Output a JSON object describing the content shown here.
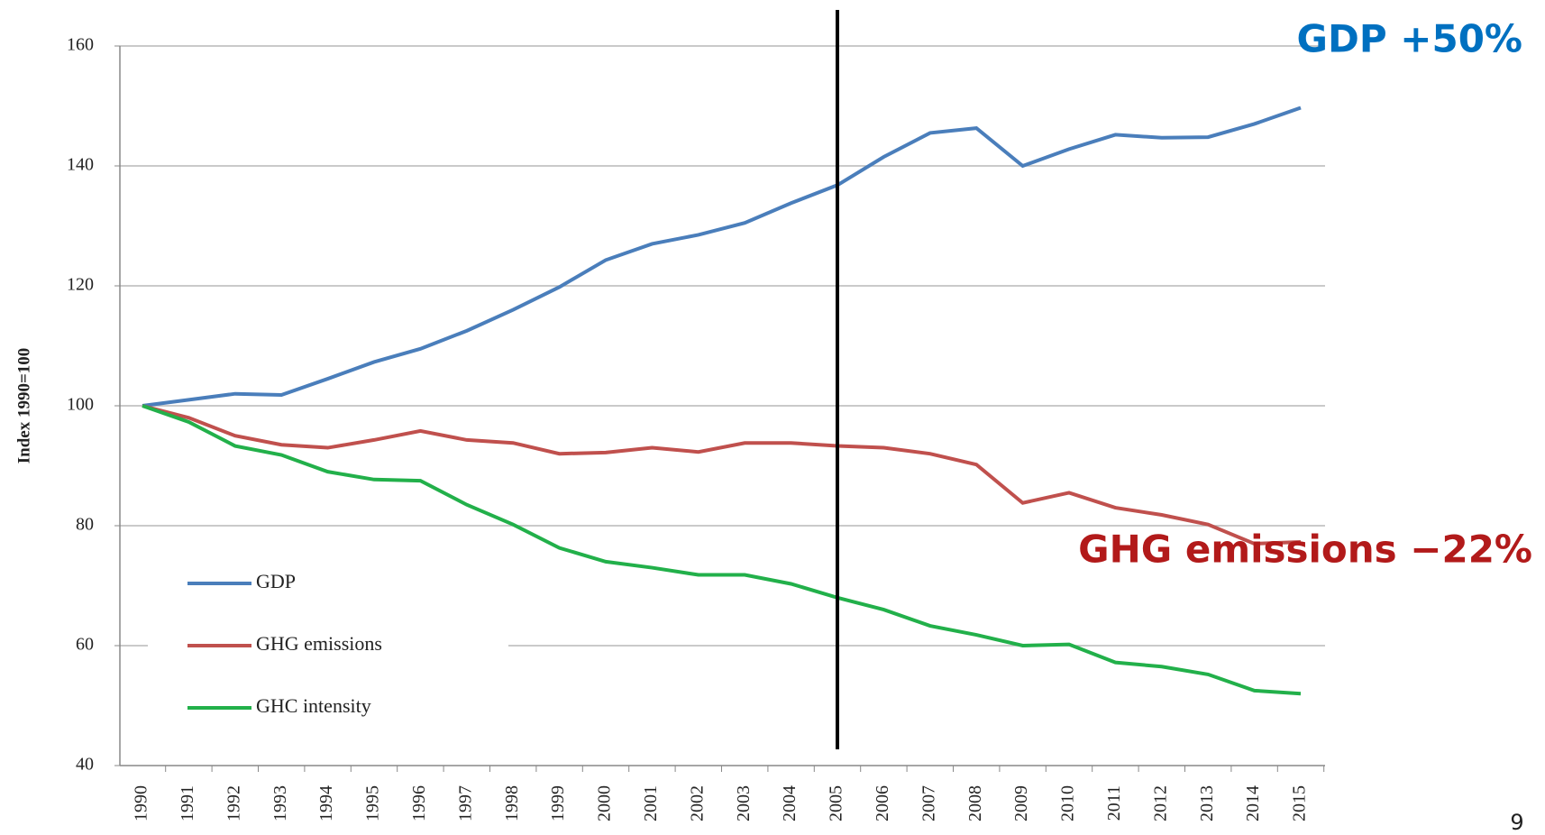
{
  "chart_data": {
    "type": "line",
    "y_label": "Index 1990=100",
    "categories": [
      "1990",
      "1991",
      "1992",
      "1993",
      "1994",
      "1995",
      "1996",
      "1997",
      "1998",
      "1999",
      "2000",
      "2001",
      "2002",
      "2003",
      "2004",
      "2005",
      "2006",
      "2007",
      "2008",
      "2009",
      "2010",
      "2011",
      "2012",
      "2013",
      "2014",
      "2015"
    ],
    "series": [
      {
        "name": "GDP",
        "color": "#4a7ebb",
        "values": [
          100,
          101,
          102,
          101.8,
          104.5,
          107.3,
          109.5,
          112.5,
          116,
          119.8,
          124.3,
          127,
          128.5,
          130.5,
          133.8,
          136.8,
          141.5,
          145.5,
          146.3,
          140,
          142.8,
          145.2,
          144.7,
          144.8,
          147,
          149.7
        ]
      },
      {
        "name": "GHG emissions",
        "color": "#c0504d",
        "values": [
          100,
          98,
          95,
          93.5,
          93,
          94.3,
          95.8,
          94.3,
          93.8,
          92,
          92.2,
          93,
          92.3,
          93.8,
          93.8,
          93.3,
          93,
          92,
          90.2,
          83.8,
          85.5,
          83,
          81.8,
          80.2,
          77,
          77.3
        ]
      },
      {
        "name": "GHC intensity",
        "color": "#22b04a",
        "values": [
          100,
          97.3,
          93.3,
          91.8,
          89,
          87.7,
          87.5,
          83.5,
          80.2,
          76.3,
          74,
          73,
          71.8,
          71.8,
          70.3,
          68,
          66,
          63.3,
          61.8,
          60,
          60.2,
          57.2,
          56.5,
          55.2,
          52.5,
          52
        ]
      }
    ],
    "ylim": [
      40,
      160
    ],
    "yticks": [
      40,
      60,
      80,
      100,
      120,
      140,
      160
    ],
    "grid": true,
    "legend": "lower left",
    "vertical_line": "2005",
    "annotations": [
      {
        "text": "GDP +50%",
        "color": "#0070c0"
      },
      {
        "text": "GHG emissions −22%",
        "color": "#b21a1a"
      }
    ],
    "page_number": "9"
  }
}
